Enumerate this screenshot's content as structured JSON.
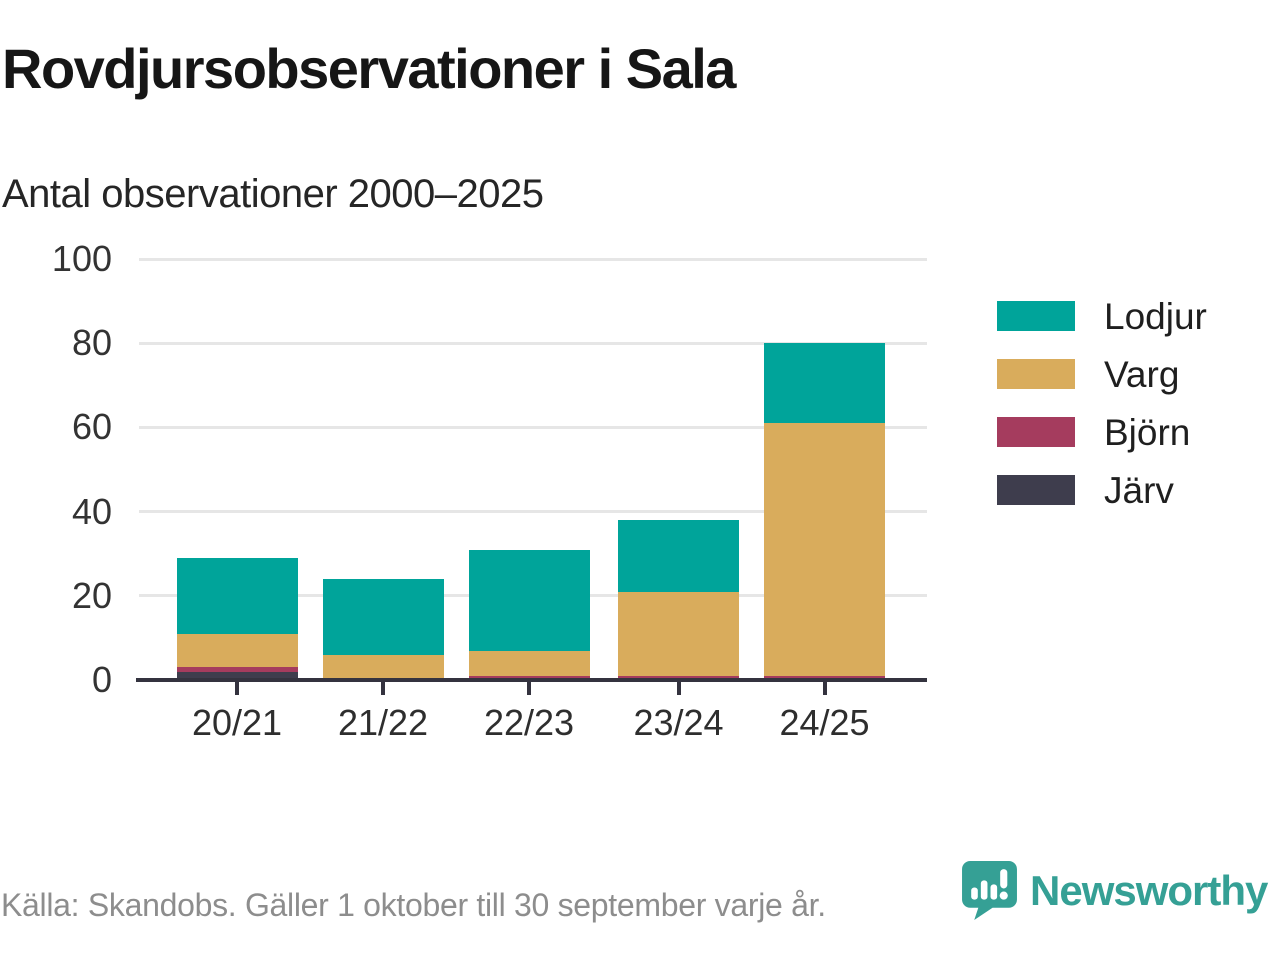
{
  "title": "Rovdjursobservationer i Sala",
  "subtitle": "Antal observationer 2000–2025",
  "footer": {
    "source": "Källa: Skandobs. Gäller 1 oktober till 30 september varje år.",
    "brand": "Newsworthy",
    "brand_color": "#35a095",
    "logo_icon": "speech-bubble-bar-chart-icon"
  },
  "colors": {
    "axis": "#34333f",
    "gridline": "#e6e6e6",
    "title_text": "#161616",
    "tick_text": "#333333",
    "source_text": "#8d8d8d"
  },
  "chart_data": {
    "type": "bar",
    "stacked": true,
    "title": "Rovdjursobservationer i Sala",
    "subtitle": "Antal observationer 2000–2025",
    "xlabel": "",
    "ylabel": "",
    "ylim": [
      0,
      100
    ],
    "yticks": [
      0,
      20,
      40,
      60,
      80,
      100
    ],
    "grid": true,
    "legend_position": "right",
    "categories": [
      "20/21",
      "21/22",
      "22/23",
      "23/24",
      "24/25"
    ],
    "series": [
      {
        "name": "Lodjur",
        "color": "#00a49a",
        "values": [
          18,
          18,
          24,
          17,
          19
        ]
      },
      {
        "name": "Varg",
        "color": "#d9ac5c",
        "values": [
          8,
          6,
          6,
          20,
          60
        ]
      },
      {
        "name": "Björn",
        "color": "#a53c5e",
        "values": [
          1,
          0,
          1,
          1,
          1
        ]
      },
      {
        "name": "Järv",
        "color": "#3e3d4d",
        "values": [
          2,
          0,
          0,
          0,
          0
        ]
      }
    ],
    "totals": [
      29,
      24,
      31,
      38,
      80
    ]
  }
}
